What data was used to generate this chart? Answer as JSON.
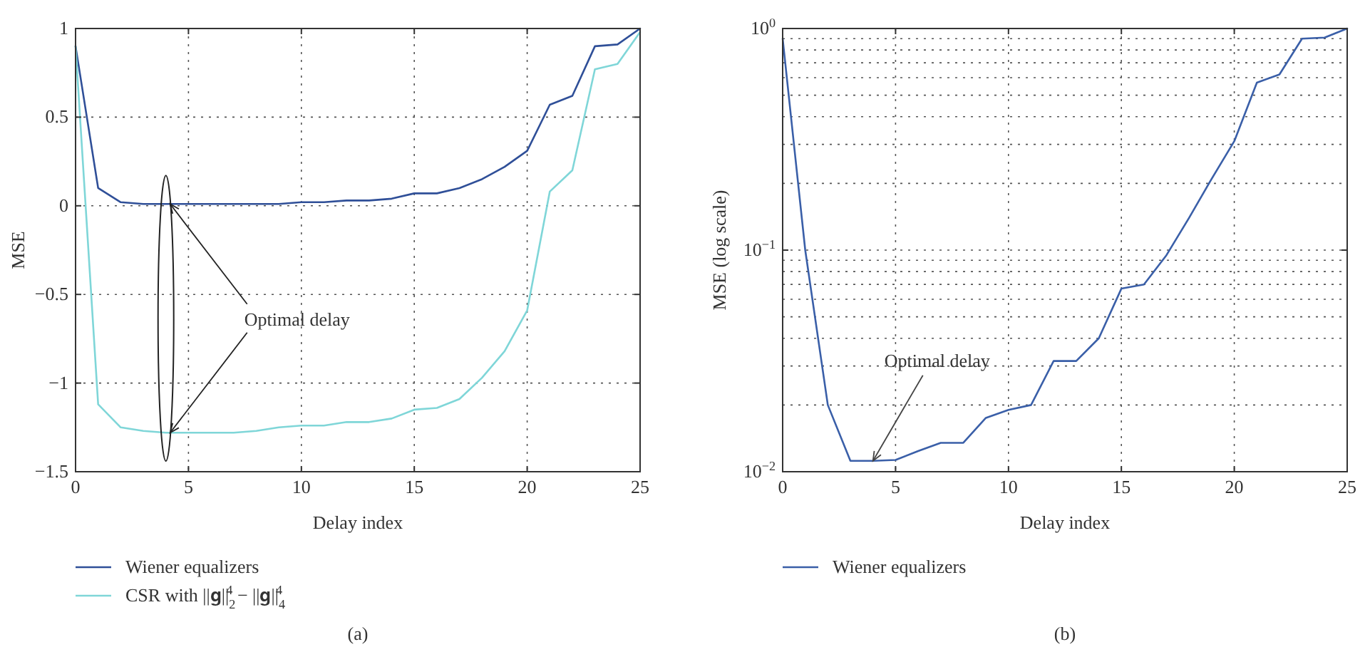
{
  "chart_data": [
    {
      "type": "line",
      "xlabel": "Delay index",
      "ylabel": "MSE",
      "x": [
        0,
        1,
        2,
        3,
        4,
        5,
        6,
        7,
        8,
        9,
        10,
        11,
        12,
        13,
        14,
        15,
        16,
        17,
        18,
        19,
        20,
        21,
        22,
        23,
        24,
        25
      ],
      "series": [
        {
          "name": "Wiener equalizers",
          "color": "#2f4f98",
          "values": [
            0.9,
            0.1,
            0.02,
            0.01,
            0.01,
            0.01,
            0.01,
            0.01,
            0.01,
            0.01,
            0.02,
            0.02,
            0.03,
            0.03,
            0.04,
            0.07,
            0.07,
            0.1,
            0.15,
            0.22,
            0.31,
            0.57,
            0.62,
            0.9,
            0.91,
            1
          ]
        },
        {
          "name": "CSR with ||𝐠||$_{2}$$^{4}$ − ||𝐠||$_{4}$$^{4}$",
          "color": "#7fd6d8",
          "values": [
            0.9,
            -1.12,
            -1.25,
            -1.27,
            -1.28,
            -1.28,
            -1.28,
            -1.28,
            -1.27,
            -1.25,
            -1.24,
            -1.24,
            -1.22,
            -1.22,
            -1.2,
            -1.15,
            -1.14,
            -1.09,
            -0.97,
            -0.82,
            -0.59,
            0.08,
            0.2,
            0.77,
            0.8,
            0.98
          ]
        }
      ],
      "xlim": [
        0,
        25
      ],
      "xticks": [
        0,
        5,
        10,
        15,
        20,
        25
      ],
      "ylim": [
        -1.5,
        1
      ],
      "yticks": [
        -1.5,
        -1,
        -0.5,
        0,
        0.5,
        1
      ],
      "grid": true,
      "legend": "bottom",
      "annotations": [
        {
          "text": "Optimal delay",
          "x": 4,
          "y": -1.28
        },
        "(a)"
      ]
    },
    {
      "type": "line",
      "xlabel": "Delay index",
      "ylabel": "MSE (log scale)",
      "x": [
        0,
        1,
        2,
        3,
        4,
        5,
        6,
        7,
        8,
        9,
        10,
        11,
        12,
        13,
        14,
        15,
        16,
        17,
        18,
        19,
        20,
        21,
        22,
        23,
        24,
        25
      ],
      "series": [
        {
          "name": "Wiener equalizers",
          "color": "#3a5fa8",
          "values": [
            0.9,
            0.1,
            0.02,
            0.0112,
            0.0112,
            0.0113,
            0.0124,
            0.0135,
            0.0135,
            0.0175,
            0.019,
            0.02,
            0.0316,
            0.0316,
            0.04,
            0.067,
            0.07,
            0.095,
            0.14,
            0.21,
            0.31,
            0.57,
            0.62,
            0.9,
            0.91,
            1
          ]
        }
      ],
      "xlim": [
        0,
        25
      ],
      "xticks": [
        0,
        5,
        10,
        15,
        20,
        25
      ],
      "ylim": [
        0.01,
        1
      ],
      "yticks": [
        {
          "value": 0.01,
          "label": "10$^{−2}$"
        },
        {
          "value": 0.1,
          "label": "10$^{−1}$"
        },
        {
          "value": 1,
          "label": "10$^{0}$"
        }
      ],
      "log": "y",
      "grid": true,
      "legend": "bottom",
      "annotations": [
        {
          "text": "Optimal delay",
          "x": 4,
          "y": 0.0112
        },
        "(b)"
      ]
    }
  ]
}
